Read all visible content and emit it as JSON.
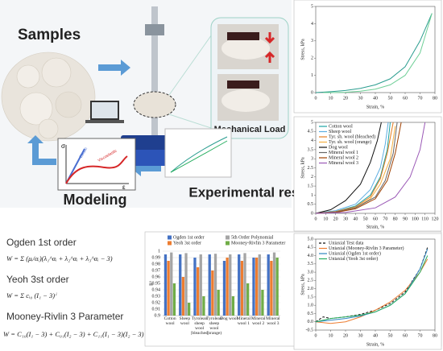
{
  "illustration": {
    "samples": "Samples",
    "load": "Mechanical Load",
    "modeling": "Modeling",
    "experimental": "Experimental results",
    "model_plot": {
      "y_symbol": "σ",
      "x_symbol": "ε",
      "elastic": "Elastic",
      "viscoelastic": "Viscoelastic"
    }
  },
  "equations": [
    {
      "name": "Ogden 1st order",
      "formula": "W = Σ (μᵢ/αᵢ)(λ₁^αᵢ + λ₂^αᵢ + λ₃^αᵢ − 3)"
    },
    {
      "name": "Yeoh 3st order",
      "formula": "W = Σ cᵢ₀ (I₁ − 3)ⁱ"
    },
    {
      "name": "Mooney-Rivlin 3 Parameter",
      "formula": "W = C₁₀(I₁ − 3) + C₀₁(I₂ − 3) + C₁₁(I₁ − 3)(I₂ − 3)"
    }
  ],
  "charts": [
    {
      "type": "line",
      "xlabel": "Strain, %",
      "ylabel": "Stress, kPa",
      "xlim": [
        0,
        80
      ],
      "ylim": [
        0,
        5
      ],
      "xticks": [
        0,
        10,
        20,
        30,
        40,
        50,
        60,
        70,
        80
      ],
      "yticks": [
        0,
        1,
        2,
        3,
        4,
        5
      ],
      "grid": false,
      "series": [
        {
          "color": "#2a9d8f",
          "x": [
            0,
            10,
            20,
            30,
            40,
            50,
            60,
            70,
            78
          ],
          "values": [
            0,
            0.05,
            0.12,
            0.25,
            0.45,
            0.8,
            1.5,
            3.0,
            4.6
          ]
        },
        {
          "color": "#6fcf97",
          "x": [
            78,
            70,
            60,
            50,
            40,
            30,
            20,
            10,
            5
          ],
          "values": [
            4.6,
            2.3,
            1.0,
            0.45,
            0.2,
            0.08,
            0.02,
            0,
            0
          ]
        }
      ]
    },
    {
      "type": "line",
      "xlabel": "Strain, %",
      "ylabel": "Stress, kPa",
      "xlim": [
        0,
        120
      ],
      "ylim": [
        0,
        5
      ],
      "xticks": [
        0,
        10,
        20,
        30,
        40,
        50,
        60,
        70,
        80,
        90,
        100,
        110,
        120
      ],
      "yticks": [
        0,
        0.5,
        1,
        1.5,
        2,
        2.5,
        3,
        3.5,
        4,
        4.5,
        5
      ],
      "grid": false,
      "legend": "upper left",
      "series": [
        {
          "name": "Cotton wool",
          "color": "#1aa3a3",
          "x": [
            0,
            20,
            40,
            55,
            65,
            72,
            75
          ],
          "values": [
            0,
            0.1,
            0.4,
            1,
            2,
            3.5,
            5
          ]
        },
        {
          "name": "Sheep wool",
          "color": "#5dade2",
          "x": [
            0,
            20,
            40,
            55,
            65,
            70,
            73
          ],
          "values": [
            0,
            0.15,
            0.5,
            1.3,
            2.5,
            3.8,
            5
          ]
        },
        {
          "name": "Tyr. sh. wool (bleached)",
          "color": "#e67e22",
          "x": [
            0,
            20,
            40,
            55,
            65,
            72,
            78
          ],
          "values": [
            0,
            0.1,
            0.35,
            0.9,
            1.9,
            3.3,
            5
          ]
        },
        {
          "name": "Tyr. sh. wool (orange)",
          "color": "#f5b041",
          "x": [
            0,
            20,
            40,
            55,
            65,
            75,
            80
          ],
          "values": [
            0,
            0.08,
            0.3,
            0.8,
            1.6,
            3,
            4.8
          ]
        },
        {
          "name": "Dog wool",
          "color": "#111111",
          "x": [
            0,
            15,
            30,
            45,
            55,
            62,
            66
          ],
          "values": [
            0,
            0.2,
            0.7,
            1.6,
            2.8,
            4,
            5
          ]
        },
        {
          "name": "Mineral wool 1",
          "color": "#666666",
          "x": [
            0,
            20,
            40,
            60,
            70,
            78,
            82
          ],
          "values": [
            0,
            0.08,
            0.3,
            0.9,
            1.8,
            3.3,
            5
          ]
        },
        {
          "name": "Mineral wool 2",
          "color": "#a04000",
          "x": [
            0,
            20,
            40,
            60,
            72,
            80,
            86
          ],
          "values": [
            0,
            0.05,
            0.25,
            0.8,
            1.8,
            3.3,
            5
          ]
        },
        {
          "name": "Mineral wool 3",
          "color": "#9b59b6",
          "x": [
            0,
            30,
            60,
            80,
            95,
            105,
            110
          ],
          "values": [
            0,
            0.05,
            0.3,
            0.9,
            2,
            3.5,
            5
          ]
        }
      ]
    },
    {
      "type": "bar",
      "ylabel": "R²",
      "ylim": [
        0.9,
        1
      ],
      "yticks": [
        0.9,
        0.91,
        0.92,
        0.93,
        0.94,
        0.95,
        0.96,
        0.97,
        0.98,
        0.99,
        1
      ],
      "grid": true,
      "legend": "upper center",
      "categories": [
        "Cotton wool",
        "Sheep wool",
        "Tyrolean sheep wool (bleached)",
        "Tyrolean sheep wool (orange)",
        "Dog wool",
        "Mineral wool 1",
        "Mineral wool 2",
        "Mineral wool 3"
      ],
      "series": [
        {
          "name": "Ogden 1st order",
          "color": "#4472c4",
          "values": [
            0.995,
            0.995,
            0.99,
            0.995,
            0.985,
            0.995,
            0.99,
            0.995
          ]
        },
        {
          "name": "Yeoh 3st order",
          "color": "#ed7d31",
          "values": [
            0.985,
            0.96,
            0.975,
            0.97,
            0.99,
            0.985,
            0.99,
            0.985
          ]
        },
        {
          "name": "5th Order Polynomial",
          "color": "#a5a5a5",
          "values": [
            0.998,
            0.997,
            0.995,
            0.996,
            0.995,
            0.997,
            0.995,
            0.998
          ]
        },
        {
          "name": "Mooney-Rivlin 3 Parameter",
          "color": "#70ad47",
          "values": [
            0.95,
            0.92,
            0.93,
            0.94,
            0.93,
            0.95,
            0.94,
            0.99
          ]
        }
      ]
    },
    {
      "type": "line",
      "xlabel": "Strain, %",
      "ylabel": "Stress, kPa",
      "xlim": [
        0,
        80
      ],
      "ylim": [
        -0.5,
        5
      ],
      "xticks": [
        0,
        10,
        20,
        30,
        40,
        50,
        60,
        70,
        80
      ],
      "yticks": [
        -0.5,
        {
          "value": 0,
          "label": "0.0"
        },
        0.5,
        {
          "value": 1,
          "label": "1.0"
        },
        1.5,
        {
          "value": 2,
          "label": "2.0"
        },
        2.5,
        {
          "value": 3,
          "label": "3.0"
        },
        3.5,
        {
          "value": 4,
          "label": "4.0"
        },
        4.5,
        {
          "value": 5,
          "label": "5.0"
        }
      ],
      "grid": false,
      "legend": "upper left",
      "series": [
        {
          "name": "Uniaxial Test data",
          "color": "#111111",
          "dash": true,
          "x": [
            0,
            5,
            10,
            20,
            30,
            40,
            50,
            60,
            70,
            75
          ],
          "values": [
            0,
            0.3,
            0.2,
            0.3,
            0.45,
            0.7,
            1.1,
            1.8,
            3.2,
            4.5
          ]
        },
        {
          "name": "Uniaxial (Mooney-Rivlin 3 Parameter)",
          "color": "#ed7d31",
          "x": [
            0,
            10,
            20,
            30,
            40,
            50,
            60,
            70,
            75
          ],
          "values": [
            0,
            -0.1,
            0,
            0.3,
            0.7,
            1.2,
            1.9,
            3,
            3.8
          ]
        },
        {
          "name": "Uniaxial (Ogden 1st order)",
          "color": "#2e86c1",
          "x": [
            0,
            10,
            20,
            30,
            40,
            50,
            60,
            70,
            75
          ],
          "values": [
            0,
            0.1,
            0.2,
            0.35,
            0.6,
            1,
            1.7,
            3.2,
            4.4
          ]
        },
        {
          "name": "Uniaxial (Yeoh 3st order)",
          "color": "#27ae60",
          "x": [
            0,
            10,
            20,
            30,
            40,
            50,
            60,
            70,
            75
          ],
          "values": [
            0,
            0.2,
            0.3,
            0.4,
            0.6,
            1,
            1.7,
            3,
            4
          ]
        }
      ]
    }
  ]
}
